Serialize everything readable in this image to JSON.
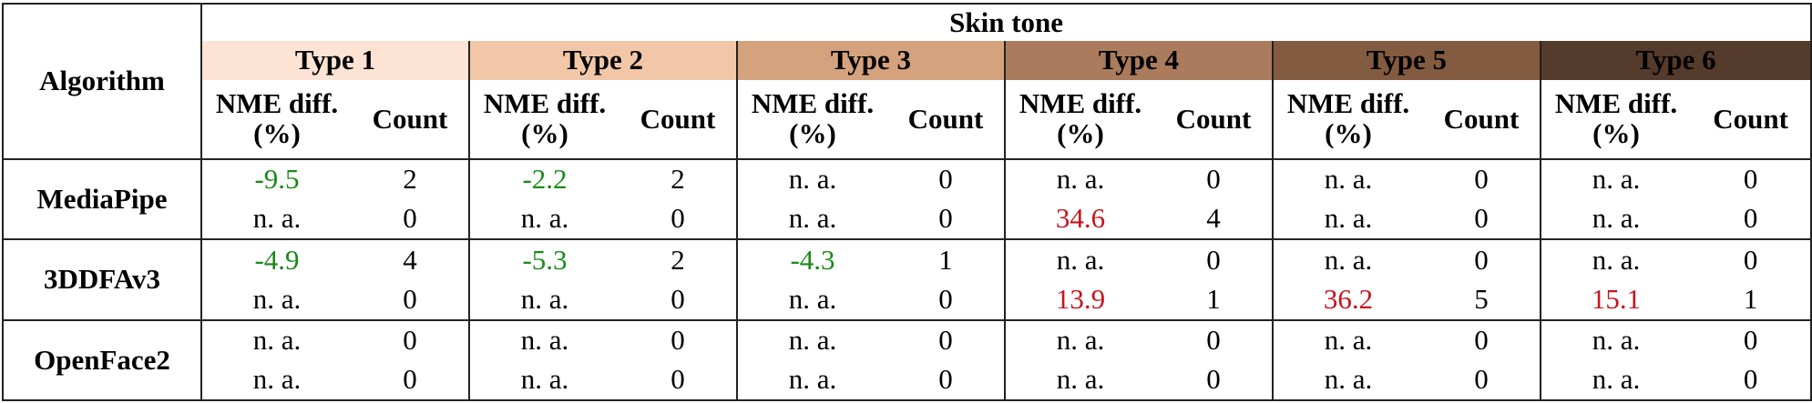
{
  "header": {
    "algorithm": "Algorithm",
    "group": "Skin tone",
    "nme": "NME diff.(%)",
    "count": "Count"
  },
  "types": [
    {
      "label": "Type 1",
      "color": "#fde3d4"
    },
    {
      "label": "Type 2",
      "color": "#f2c7a8"
    },
    {
      "label": "Type 3",
      "color": "#d4a27d"
    },
    {
      "label": "Type 4",
      "color": "#aa7c5d"
    },
    {
      "label": "Type 5",
      "color": "#835b40"
    },
    {
      "label": "Type 6",
      "color": "#553b2b"
    }
  ],
  "rows": [
    {
      "algorithm": "MediaPipe",
      "lines": [
        [
          {
            "v": "-9.5",
            "c": "green"
          },
          {
            "v": "2"
          },
          {
            "v": "-2.2",
            "c": "green"
          },
          {
            "v": "2"
          },
          {
            "v": "n. a."
          },
          {
            "v": "0"
          },
          {
            "v": "n. a."
          },
          {
            "v": "0"
          },
          {
            "v": "n. a."
          },
          {
            "v": "0"
          },
          {
            "v": "n. a."
          },
          {
            "v": "0"
          }
        ],
        [
          {
            "v": "n. a."
          },
          {
            "v": "0"
          },
          {
            "v": "n. a."
          },
          {
            "v": "0"
          },
          {
            "v": "n. a."
          },
          {
            "v": "0"
          },
          {
            "v": "34.6",
            "c": "red"
          },
          {
            "v": "4"
          },
          {
            "v": "n. a."
          },
          {
            "v": "0"
          },
          {
            "v": "n. a."
          },
          {
            "v": "0"
          }
        ]
      ]
    },
    {
      "algorithm": "3DDFAv3",
      "lines": [
        [
          {
            "v": "-4.9",
            "c": "green"
          },
          {
            "v": "4"
          },
          {
            "v": "-5.3",
            "c": "green"
          },
          {
            "v": "2"
          },
          {
            "v": "-4.3",
            "c": "green"
          },
          {
            "v": "1"
          },
          {
            "v": "n. a."
          },
          {
            "v": "0"
          },
          {
            "v": "n. a."
          },
          {
            "v": "0"
          },
          {
            "v": "n. a."
          },
          {
            "v": "0"
          }
        ],
        [
          {
            "v": "n. a."
          },
          {
            "v": "0"
          },
          {
            "v": "n. a."
          },
          {
            "v": "0"
          },
          {
            "v": "n. a."
          },
          {
            "v": "0"
          },
          {
            "v": "13.9",
            "c": "red"
          },
          {
            "v": "1"
          },
          {
            "v": "36.2",
            "c": "red"
          },
          {
            "v": "5"
          },
          {
            "v": "15.1",
            "c": "red"
          },
          {
            "v": "1"
          }
        ]
      ]
    },
    {
      "algorithm": "OpenFace2",
      "lines": [
        [
          {
            "v": "n. a."
          },
          {
            "v": "0"
          },
          {
            "v": "n. a."
          },
          {
            "v": "0"
          },
          {
            "v": "n. a."
          },
          {
            "v": "0"
          },
          {
            "v": "n. a."
          },
          {
            "v": "0"
          },
          {
            "v": "n. a."
          },
          {
            "v": "0"
          },
          {
            "v": "n. a."
          },
          {
            "v": "0"
          }
        ],
        [
          {
            "v": "n. a."
          },
          {
            "v": "0"
          },
          {
            "v": "n. a."
          },
          {
            "v": "0"
          },
          {
            "v": "n. a."
          },
          {
            "v": "0"
          },
          {
            "v": "n. a."
          },
          {
            "v": "0"
          },
          {
            "v": "n. a."
          },
          {
            "v": "0"
          },
          {
            "v": "n. a."
          },
          {
            "v": "0"
          }
        ]
      ]
    }
  ]
}
